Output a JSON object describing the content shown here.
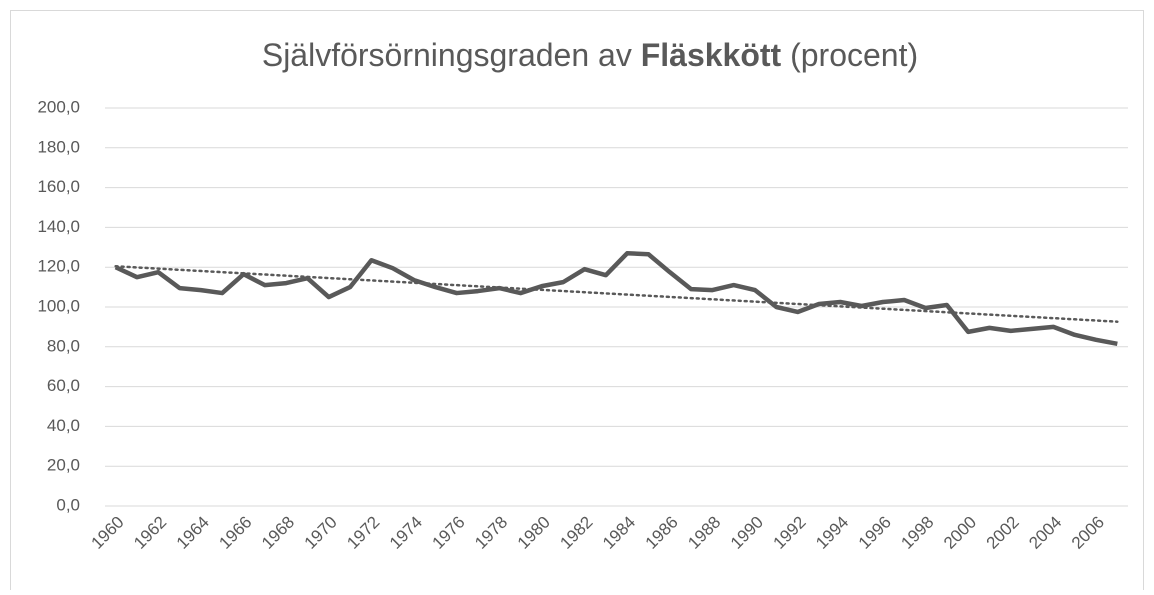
{
  "chart_data": {
    "type": "line",
    "title_parts": [
      "Självförsörningsgraden av",
      "Fläskkött",
      "(procent)"
    ],
    "categories": [
      "1960",
      null,
      "1962",
      null,
      "1964",
      null,
      "1966",
      null,
      "1968",
      null,
      "1970",
      null,
      "1972",
      null,
      "1974",
      null,
      "1976",
      null,
      "1978",
      null,
      "1980",
      null,
      "1982",
      null,
      "1984",
      null,
      "1986",
      null,
      "1988",
      null,
      "1990",
      null,
      "1992",
      null,
      "1994",
      null,
      "1996",
      null,
      "1998",
      null,
      "2000",
      null,
      "2002",
      null,
      "2004",
      null,
      "2006",
      null
    ],
    "series": [
      {
        "color": "#595959",
        "values": [
          120,
          115,
          117.5,
          109.5,
          108.5,
          107,
          116.5,
          111,
          112,
          114.5,
          105,
          110,
          123.5,
          119.5,
          113.5,
          110,
          107,
          108,
          109.5,
          107,
          110.5,
          112.5,
          119,
          116,
          127,
          126.5,
          117.5,
          109,
          108.5,
          111,
          108.5,
          100,
          97.5,
          101.5,
          102.5,
          100.5,
          102.5,
          103.5,
          99.5,
          101,
          87.5,
          89.5,
          88,
          89,
          90,
          86,
          83.5,
          81.5
        ]
      }
    ],
    "trendline": {
      "type": "linear",
      "color": "#595959"
    },
    "ylim": [
      0,
      200
    ],
    "yticks": [
      {
        "value": 0,
        "label": "0,0"
      },
      {
        "value": 20,
        "label": "20,0"
      },
      {
        "value": 40,
        "label": "40,0"
      },
      {
        "value": 60,
        "label": "60,0"
      },
      {
        "value": 80,
        "label": "80,0"
      },
      {
        "value": 100,
        "label": "100,0"
      },
      {
        "value": 120,
        "label": "120,0"
      },
      {
        "value": 140,
        "label": "140,0"
      },
      {
        "value": 160,
        "label": "160,0"
      },
      {
        "value": 180,
        "label": "180,0"
      },
      {
        "value": 200,
        "label": "200,0"
      }
    ],
    "grid": true
  }
}
